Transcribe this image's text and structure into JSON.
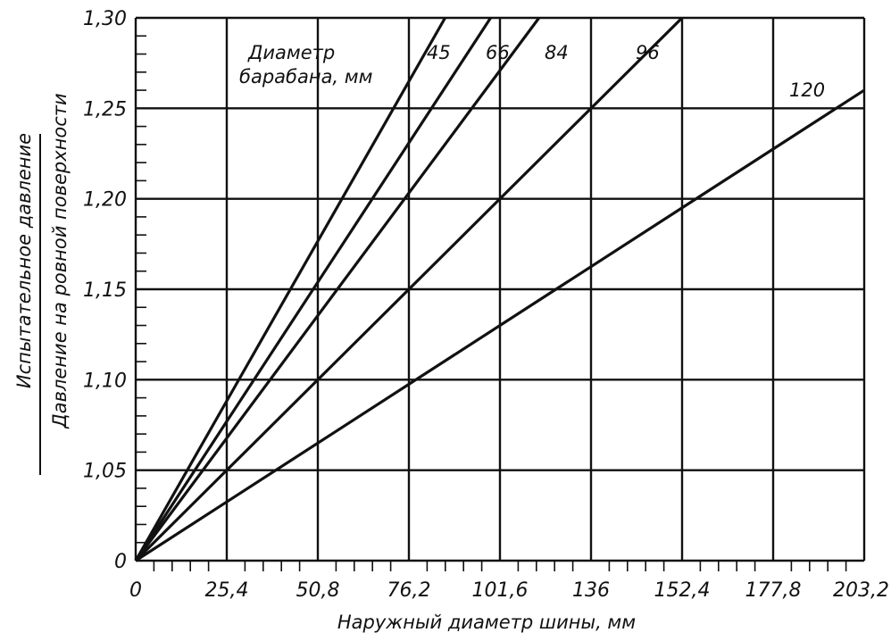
{
  "chart_data": {
    "type": "line",
    "title": "",
    "xlabel": "Наружный диаметр шины, мм",
    "ylabel_top": "Испытательное давление",
    "ylabel_bottom": "Давление на ровной поверхности",
    "x_tick_labels": [
      "0",
      "25,4",
      "50,8",
      "76,2",
      "101,6",
      "136",
      "152,4",
      "177,8",
      "203,2"
    ],
    "y_tick_labels": [
      "0",
      "1,05",
      "1,10",
      "1,15",
      "1,20",
      "1,25",
      "1,30"
    ],
    "y_values": [
      1.0,
      1.05,
      1.1,
      1.15,
      1.2,
      1.25,
      1.3
    ],
    "legend_title_line1": "Диаметр",
    "legend_title_line2": "барабана, мм",
    "grid": true,
    "series": [
      {
        "name": "45",
        "x": [
          0,
          86.3
        ],
        "y": [
          1.0,
          1.3
        ]
      },
      {
        "name": "66",
        "x": [
          0,
          99.0
        ],
        "y": [
          1.0,
          1.3
        ]
      },
      {
        "name": "84",
        "x": [
          0,
          112.5
        ],
        "y": [
          1.0,
          1.3
        ]
      },
      {
        "name": "96",
        "x": [
          0,
          152.4
        ],
        "y": [
          1.0,
          1.3
        ]
      },
      {
        "name": "120",
        "x": [
          0,
          203.2
        ],
        "y": [
          1.0,
          1.26
        ]
      }
    ]
  }
}
